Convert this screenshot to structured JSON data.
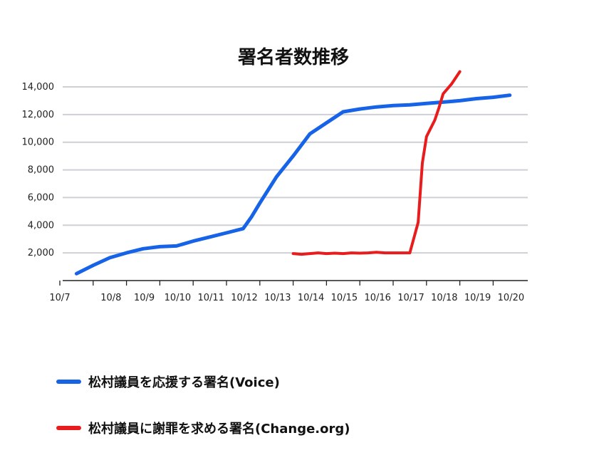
{
  "chart_data": {
    "type": "line",
    "title": "署名者数推移",
    "xlabel": "",
    "ylabel": "",
    "x_tick_labels": [
      "10/7",
      "10/8",
      "10/9",
      "10/10",
      "10/11",
      "10/12",
      "10/13",
      "10/14",
      "10/15",
      "10/16",
      "10/17",
      "10/18",
      "10/19",
      "10/20"
    ],
    "y_tick_labels": [
      "2,000",
      "4,000",
      "6,000",
      "8,000",
      "10,000",
      "12,000",
      "14,000"
    ],
    "y_ticks": [
      2000,
      4000,
      6000,
      8000,
      10000,
      12000,
      14000
    ],
    "ylim": [
      0,
      14500
    ],
    "xlim": [
      "10/7",
      "10/21"
    ],
    "grid": true,
    "legend_position": "bottom-left",
    "series": [
      {
        "name": "松村議員を応援する署名(Voice)",
        "color": "#1763e8",
        "x": [
          "10/7 12:00",
          "10/8 00:00",
          "10/8 12:00",
          "10/9 00:00",
          "10/9 12:00",
          "10/10 00:00",
          "10/10 12:00",
          "10/11 00:00",
          "10/11 12:00",
          "10/12 00:00",
          "10/12 12:00",
          "10/12 18:00",
          "10/13 00:00",
          "10/13 12:00",
          "10/14 00:00",
          "10/14 12:00",
          "10/15 00:00",
          "10/15 12:00",
          "10/16 00:00",
          "10/16 12:00",
          "10/17 00:00",
          "10/17 12:00",
          "10/18 00:00",
          "10/18 12:00",
          "10/19 00:00",
          "10/19 12:00",
          "10/20 00:00",
          "10/20 12:00"
        ],
        "values": [
          500,
          1100,
          1650,
          2000,
          2300,
          2450,
          2500,
          2850,
          3150,
          3450,
          3750,
          4600,
          5600,
          7500,
          9000,
          10600,
          11400,
          12200,
          12400,
          12550,
          12650,
          12700,
          12800,
          12900,
          13000,
          13150,
          13250,
          13400
        ]
      },
      {
        "name": "松村議員に謝罪を求める署名(Change.org)",
        "color": "#e81c1c",
        "x": [
          "10/14 00:00",
          "10/14 06:00",
          "10/14 12:00",
          "10/14 18:00",
          "10/15 00:00",
          "10/15 06:00",
          "10/15 12:00",
          "10/15 18:00",
          "10/16 00:00",
          "10/16 06:00",
          "10/16 12:00",
          "10/16 18:00",
          "10/17 00:00",
          "10/17 06:00",
          "10/17 12:00",
          "10/17 18:00",
          "10/17 21:00",
          "10/18 00:00",
          "10/18 03:00",
          "10/18 06:00",
          "10/18 09:00",
          "10/18 12:00",
          "10/18 18:00",
          "10/19 00:00"
        ],
        "values": [
          1950,
          1900,
          1950,
          2000,
          1950,
          1980,
          1950,
          2000,
          1980,
          2000,
          2050,
          2000,
          2000,
          2000,
          2000,
          4200,
          8500,
          10400,
          11000,
          11600,
          12500,
          13500,
          14200,
          15100
        ]
      }
    ],
    "legend": [
      {
        "label": "松村議員を応援する署名(Voice)",
        "color": "#1763e8"
      },
      {
        "label": "松村議員に謝罪を求める署名(Change.org)",
        "color": "#e81c1c"
      }
    ]
  }
}
